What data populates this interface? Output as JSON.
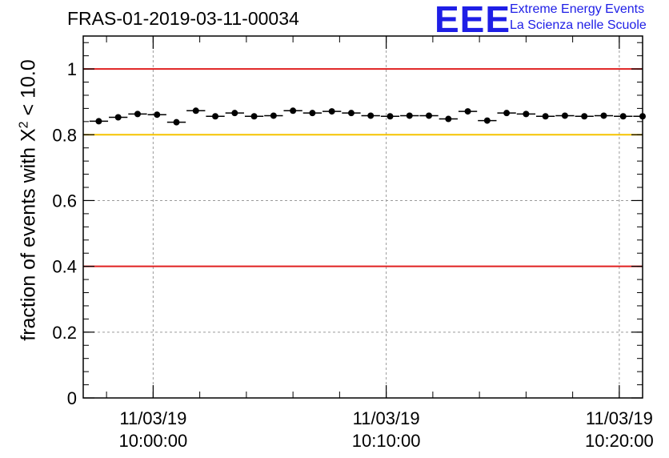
{
  "title": "FRAS-01-2019-03-11-00034",
  "logo": {
    "text": "EEE",
    "line1": "Extreme Energy Events",
    "line2": "La Scienza nelle Scuole"
  },
  "ylabel": {
    "prefix": "fraction of events with ",
    "chi": "X",
    "exponent": "2",
    "suffix": " < 10.0"
  },
  "chart_data": {
    "type": "scatter",
    "ylim": [
      0,
      1.1
    ],
    "xlim": [
      "09:57:00",
      "10:21:00"
    ],
    "yticks": [
      0,
      0.2,
      0.4,
      0.6,
      0.8,
      1
    ],
    "ytick_labels": [
      "0",
      "0.2",
      "0.4",
      "0.6",
      "0.8",
      "1"
    ],
    "xticks": [
      {
        "time": "10:00:00",
        "date": "11/03/19",
        "clock": "10:00:00"
      },
      {
        "time": "10:10:00",
        "date": "11/03/19",
        "clock": "10:10:00"
      },
      {
        "time": "10:20:00",
        "date": "11/03/19",
        "clock": "10:20:00"
      }
    ],
    "grid": true,
    "reference_lines": [
      {
        "y": 1.0,
        "color": "#e02020"
      },
      {
        "y": 0.8,
        "color": "#f5c400"
      },
      {
        "y": 0.4,
        "color": "#e02020"
      }
    ],
    "bin_width_minutes": 0.8,
    "marker_color": "#000000",
    "series": [
      {
        "x": [
          "09:57:40",
          "09:58:30",
          "09:59:20",
          "10:00:10",
          "10:01:00",
          "10:01:50",
          "10:02:40",
          "10:03:30",
          "10:04:20",
          "10:05:10",
          "10:06:00",
          "10:06:50",
          "10:07:40",
          "10:08:30",
          "10:09:20",
          "10:10:10",
          "10:11:00",
          "10:11:50",
          "10:12:40",
          "10:13:30",
          "10:14:20",
          "10:15:10",
          "10:16:00",
          "10:16:50",
          "10:17:40",
          "10:18:30",
          "10:19:20",
          "10:20:10",
          "10:21:00"
        ],
        "values": [
          0.841,
          0.853,
          0.863,
          0.861,
          0.838,
          0.873,
          0.856,
          0.866,
          0.856,
          0.858,
          0.873,
          0.866,
          0.871,
          0.866,
          0.858,
          0.856,
          0.858,
          0.858,
          0.848,
          0.871,
          0.843,
          0.866,
          0.863,
          0.856,
          0.858,
          0.856,
          0.858,
          0.856,
          0.856
        ]
      }
    ]
  }
}
